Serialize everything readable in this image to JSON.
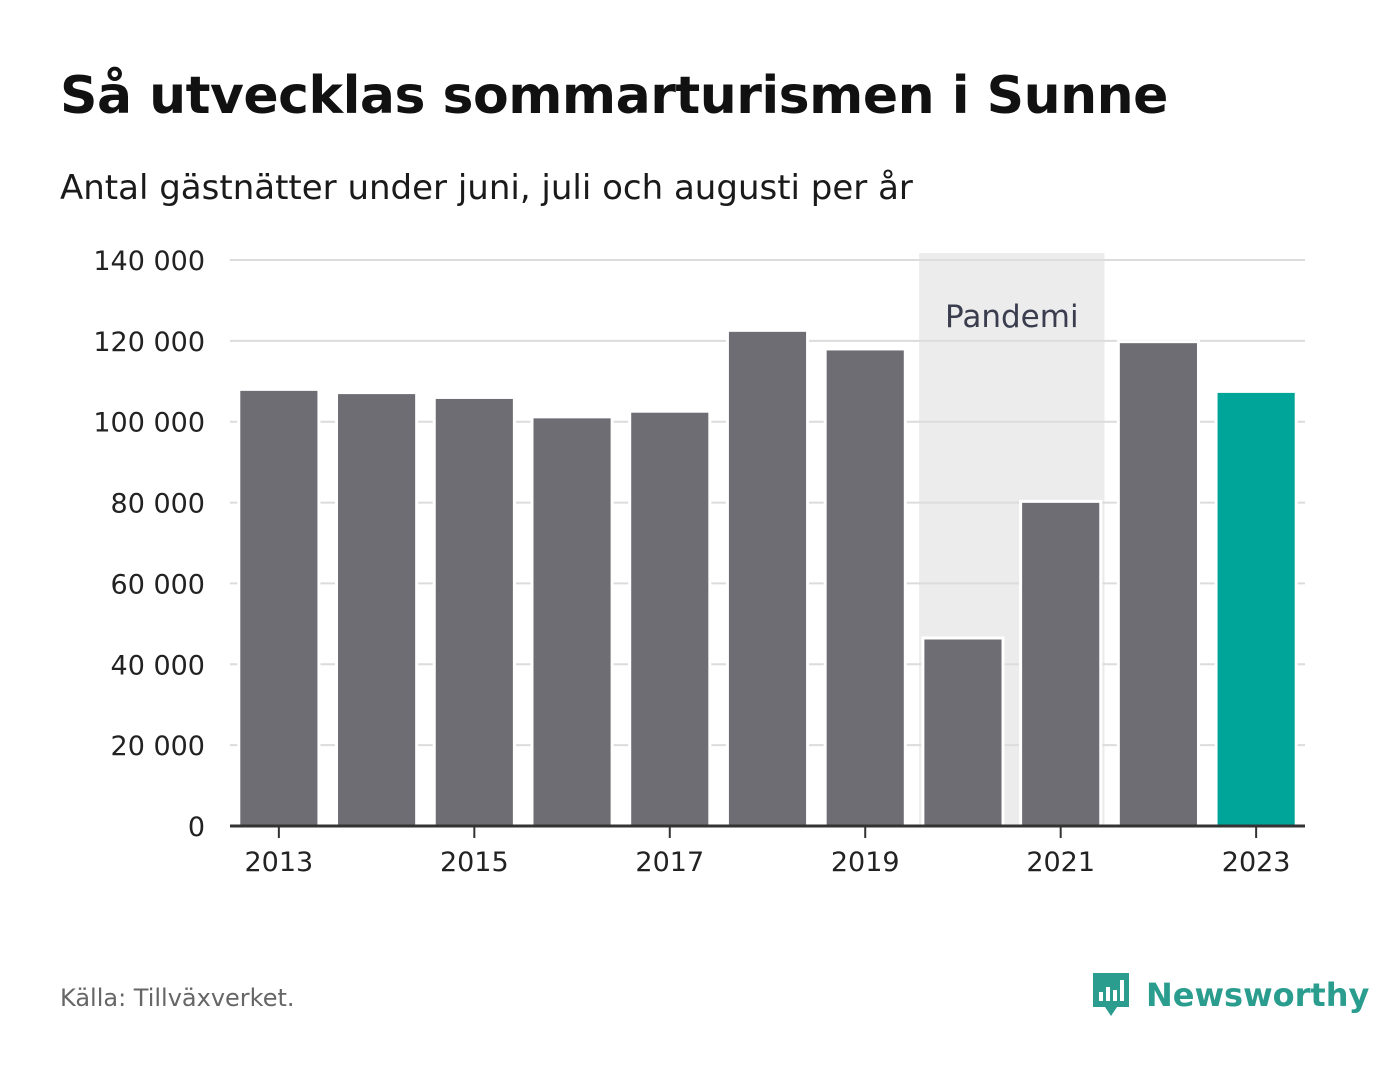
{
  "header": {
    "title": "Så utvecklas sommarturismen i Sunne",
    "subtitle": "Antal gästnätter under juni, juli och augusti per år"
  },
  "footer": {
    "source": "Källa: Tillväxverket.",
    "brand": "Newsworthy"
  },
  "colors": {
    "bar": "#6e6d73",
    "highlight": "#00a59a",
    "band": "#ececec",
    "grid": "#dcdcdc",
    "axis": "#333333",
    "brand": "#2a9d8f"
  },
  "chart_data": {
    "type": "bar",
    "title": "Så utvecklas sommarturismen i Sunne",
    "subtitle": "Antal gästnätter under juni, juli och augusti per år",
    "categories": [
      "2013",
      "2014",
      "2015",
      "2016",
      "2017",
      "2018",
      "2019",
      "2020",
      "2021",
      "2022",
      "2023"
    ],
    "values": [
      108000,
      107200,
      106000,
      101200,
      102600,
      122600,
      118000,
      46500,
      80300,
      119800,
      107500
    ],
    "highlight_category": "2023",
    "ylim": [
      0,
      140000
    ],
    "yticks": [
      0,
      20000,
      40000,
      60000,
      80000,
      100000,
      120000,
      140000
    ],
    "ytick_labels": [
      "0",
      "20 000",
      "40 000",
      "60 000",
      "80 000",
      "100 000",
      "120 000",
      "140 000"
    ],
    "xtick_labels": [
      "2013",
      "2015",
      "2017",
      "2019",
      "2021",
      "2023"
    ],
    "grid": true,
    "legend": "none",
    "annotation": {
      "label": "Pandemi",
      "from": "2020",
      "to": "2021"
    }
  }
}
